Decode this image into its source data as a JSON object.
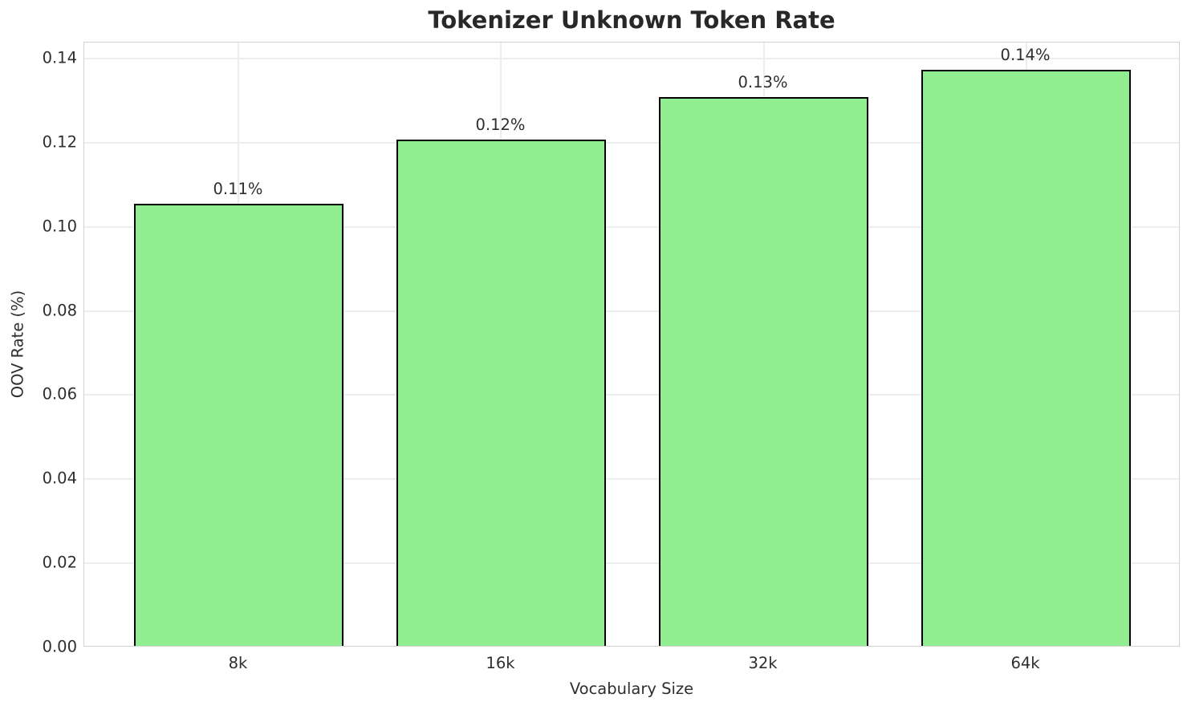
{
  "chart_data": {
    "type": "bar",
    "title": "Tokenizer Unknown Token Rate",
    "xlabel": "Vocabulary Size",
    "ylabel": "OOV Rate (%)",
    "categories": [
      "8k",
      "16k",
      "32k",
      "64k"
    ],
    "values": [
      0.105,
      0.1203,
      0.1304,
      0.1369
    ],
    "bar_labels": [
      "0.11%",
      "0.12%",
      "0.13%",
      "0.14%"
    ],
    "yticks": [
      {
        "value": 0.0,
        "label": "0.00"
      },
      {
        "value": 0.02,
        "label": "0.02"
      },
      {
        "value": 0.04,
        "label": "0.04"
      },
      {
        "value": 0.06,
        "label": "0.06"
      },
      {
        "value": 0.08,
        "label": "0.08"
      },
      {
        "value": 0.1,
        "label": "0.10"
      },
      {
        "value": 0.12,
        "label": "0.12"
      },
      {
        "value": 0.14,
        "label": "0.14"
      }
    ],
    "ylim": [
      0,
      0.1438
    ],
    "bar_color": "#90EE90",
    "bar_edge_color": "#000000",
    "grid": true,
    "grid_color": "#ededed",
    "legend": "none"
  }
}
